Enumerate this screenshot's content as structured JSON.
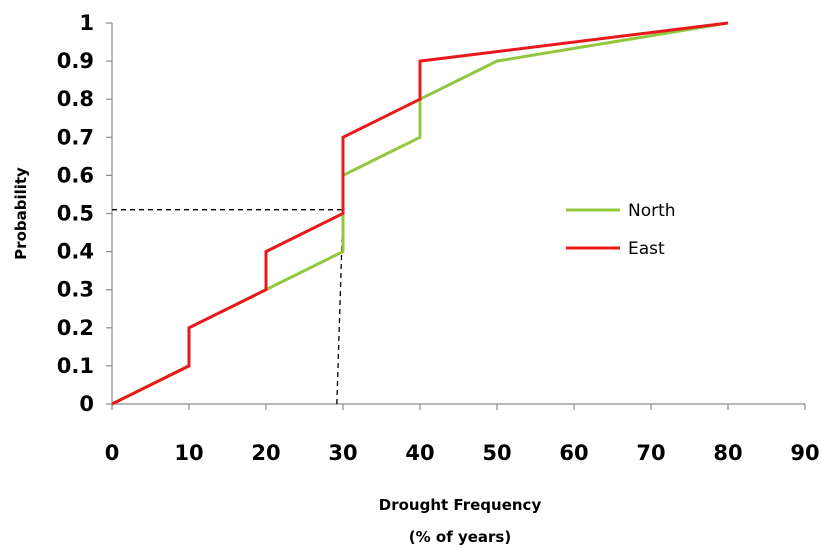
{
  "chart_data": {
    "type": "line",
    "title": "",
    "xlabel_lines": [
      "Drought Frequency",
      "(% of years)"
    ],
    "ylabel": "Probability",
    "xlim": [
      0,
      90
    ],
    "ylim": [
      0,
      1
    ],
    "x_ticks": [
      0,
      10,
      20,
      30,
      40,
      50,
      60,
      70,
      80,
      90
    ],
    "y_ticks": [
      0,
      0.1,
      0.2,
      0.3,
      0.4,
      0.5,
      0.6,
      0.7,
      0.8,
      0.9,
      1
    ],
    "y_tick_labels": [
      "0",
      "0.1",
      "0.2",
      "0.3",
      "0.4",
      "0.5",
      "0.6",
      "0.7",
      "0.8",
      "0.9",
      "1"
    ],
    "grid": false,
    "legend_position": "right",
    "series": [
      {
        "name": "North",
        "color": "#92c83e",
        "points": [
          [
            0,
            0
          ],
          [
            10,
            0.1
          ],
          [
            10,
            0.2
          ],
          [
            20,
            0.3
          ],
          [
            30,
            0.4
          ],
          [
            30,
            0.6
          ],
          [
            40,
            0.7
          ],
          [
            40,
            0.8
          ],
          [
            50,
            0.9
          ],
          [
            80,
            1.0
          ]
        ]
      },
      {
        "name": "East",
        "color": "#e8191d",
        "points": [
          [
            0,
            0
          ],
          [
            10,
            0.1
          ],
          [
            10,
            0.2
          ],
          [
            20,
            0.3
          ],
          [
            20,
            0.4
          ],
          [
            30,
            0.5
          ],
          [
            30,
            0.7
          ],
          [
            40,
            0.8
          ],
          [
            40,
            0.9
          ],
          [
            80,
            1.0
          ]
        ]
      }
    ],
    "reference_lines": [
      {
        "from": [
          0,
          0.51
        ],
        "to": [
          30,
          0.51
        ],
        "style": "dashed",
        "color": "#000000"
      },
      {
        "from": [
          29.2,
          0
        ],
        "to": [
          30,
          0.51
        ],
        "style": "dashed",
        "color": "#000000"
      }
    ]
  }
}
